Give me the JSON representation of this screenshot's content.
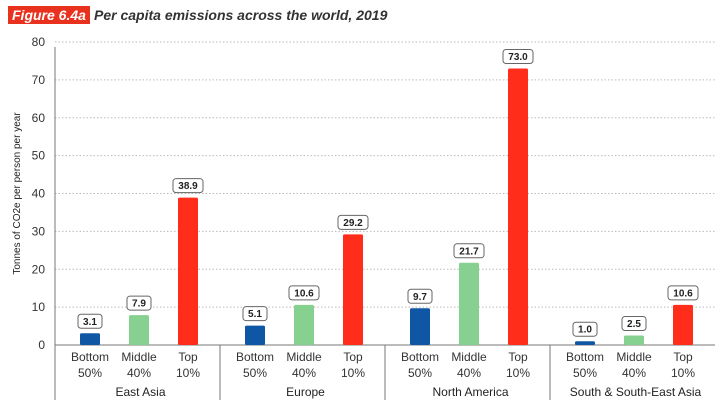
{
  "figure_label": "Figure 6.4a",
  "title": "Per capita emissions across the world, 2019",
  "chart_data": {
    "type": "bar",
    "title": "Per capita emissions across the world, 2019",
    "ylabel": "Tonnes of CO2e per person per year",
    "ylim": [
      0,
      80
    ],
    "yticks": [
      0,
      10,
      20,
      30,
      40,
      50,
      60,
      70,
      80
    ],
    "grid": true,
    "categories": [
      [
        "Bottom",
        "50%"
      ],
      [
        "Middle",
        "40%"
      ],
      [
        "Top",
        "10%"
      ]
    ],
    "colors": [
      "#0f56a5",
      "#86d18f",
      "#ff2d1a"
    ],
    "groups": [
      {
        "name": "East Asia",
        "values": [
          3.1,
          7.9,
          38.9
        ]
      },
      {
        "name": "Europe",
        "values": [
          5.1,
          10.6,
          29.2
        ]
      },
      {
        "name": "North America",
        "values": [
          9.7,
          21.7,
          73.0
        ]
      },
      {
        "name": "South & South-East Asia",
        "values": [
          1.0,
          2.5,
          10.6
        ]
      }
    ]
  }
}
